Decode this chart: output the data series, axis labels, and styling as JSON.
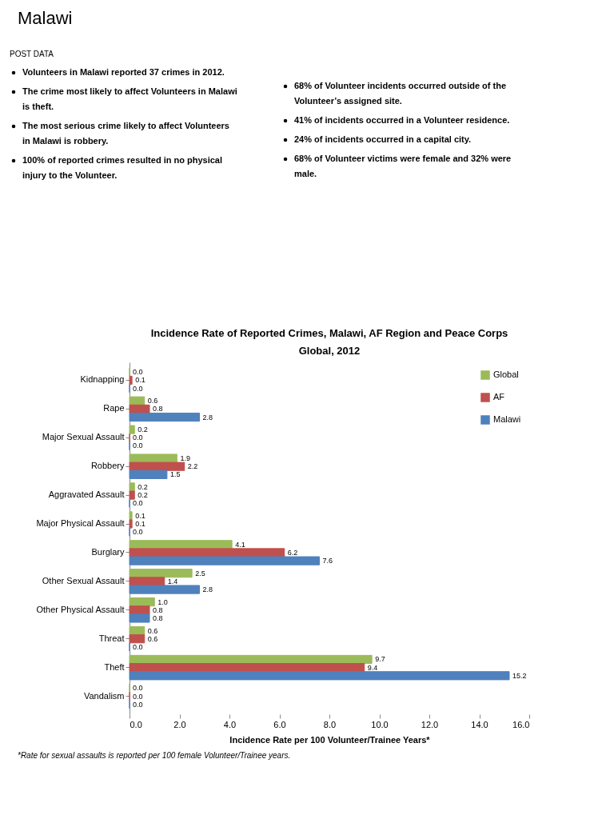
{
  "chart_data": {
    "type": "bar",
    "orientation": "horizontal",
    "title": "Incidence Rate of Reported Crimes, Malawi, AF Region and Peace Corps Global, 2012",
    "xlabel": "Incidence Rate per 100 Volunteer/Trainee Years*",
    "categories": [
      "Kidnapping",
      "Rape",
      "Major Sexual Assault",
      "Robbery",
      "Aggravated Assault",
      "Major Physical Assault",
      "Burglary",
      "Other Sexual Assault",
      "Other Physical Assault",
      "Threat",
      "Theft",
      "Vandalism"
    ],
    "series": [
      {
        "name": "Global",
        "color": "#9bbb59",
        "values": [
          0.0,
          0.6,
          0.2,
          1.9,
          0.2,
          0.1,
          4.1,
          2.5,
          1.0,
          0.6,
          9.7,
          0.0
        ],
        "value_labels": [
          "0.0",
          "0.6",
          "0.2",
          "1.9",
          "0.2",
          "0.1",
          "4.1",
          "2.5",
          "1.0",
          "0.6",
          "9.7",
          "0.0"
        ]
      },
      {
        "name": "AF",
        "color": "#c0504d",
        "values": [
          0.1,
          0.8,
          0.0,
          2.2,
          0.2,
          0.1,
          6.2,
          1.4,
          0.8,
          0.6,
          9.4,
          0.0
        ],
        "value_labels": [
          "0.1",
          "0.8",
          "0.0",
          "2.2",
          "0.2",
          "0.1",
          "6.2",
          "1.4",
          "0.8",
          "0.6",
          "9.4",
          "0.0"
        ]
      },
      {
        "name": "Malawi",
        "color": "#4f81bd",
        "values": [
          0.0,
          2.8,
          0.0,
          1.5,
          0.0,
          0.0,
          7.6,
          2.8,
          0.8,
          0.0,
          15.2,
          0.0
        ],
        "value_labels": [
          "0.0",
          "2.8",
          "0.0",
          "1.5",
          "0.0",
          "0.0",
          "7.6",
          "2.8",
          "0.8",
          "0.0",
          "15.2",
          "0.0"
        ]
      }
    ],
    "xlim": [
      0,
      16
    ],
    "xticks": [
      {
        "value": 0,
        "label": "0.0"
      },
      {
        "value": 2,
        "label": "2.0"
      },
      {
        "value": 4,
        "label": "4.0"
      },
      {
        "value": 6,
        "label": "6.0"
      },
      {
        "value": 8,
        "label": "8.0"
      },
      {
        "value": 10,
        "label": "10.0"
      },
      {
        "value": 12,
        "label": "12.0"
      },
      {
        "value": 14,
        "label": "14.0"
      },
      {
        "value": 16,
        "label": "16.0"
      }
    ],
    "legend": "top right",
    "grid": false,
    "annotations": [
      "Malawi",
      "POST DATA",
      "Volunteers in Malawi reported 37 crimes in 2012.",
      "The crime most likely to affect Volunteers in Malawi is theft.",
      "The most serious crime likely to affect Volunteers in Malawi is robbery.",
      "100% of reported crimes resulted in no physical injury to the Volunteer.",
      "68% of Volunteer incidents occurred outside of the Volunteer’s assigned site.",
      "41% of incidents occurred in a Volunteer residence.",
      "24% of incidents occurred in a capital city.",
      "68% of Volunteer victims were female and 32% were male.",
      "*Rate for sexual assaults is reported  per 100 female Volunteer/Trainee  years."
    ]
  }
}
